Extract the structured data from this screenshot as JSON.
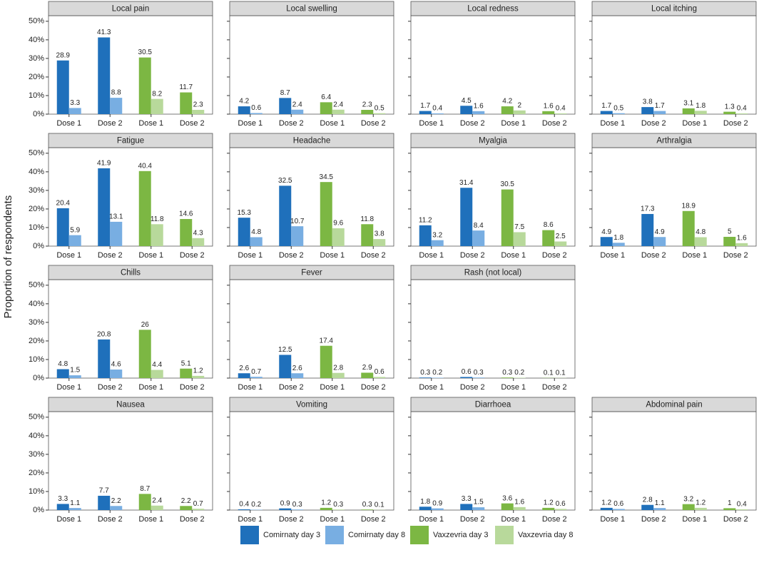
{
  "chart_data": {
    "type": "bar",
    "y_label": "Proportion of respondents",
    "categories": [
      "Dose 1",
      "Dose 2",
      "Dose 1",
      "Dose 2"
    ],
    "ylim": [
      0,
      53
    ],
    "yticks": [
      {
        "value": 0,
        "label": "0%"
      },
      {
        "value": 10,
        "label": "10%"
      },
      {
        "value": 20,
        "label": "20%"
      },
      {
        "value": 30,
        "label": "30%"
      },
      {
        "value": 40,
        "label": "40%"
      },
      {
        "value": 50,
        "label": "50%"
      }
    ],
    "series": [
      {
        "name": "Comirnaty day 3",
        "color": "#1f70bb"
      },
      {
        "name": "Comirnaty day 8",
        "color": "#78aee2"
      },
      {
        "name": "Vaxzevria day 3",
        "color": "#7cb743"
      },
      {
        "name": "Vaxzevria  day 8",
        "color": "#b8d99b"
      }
    ],
    "facets": [
      {
        "title": "Local pain",
        "values": [
          [
            28.9,
            41.3,
            null,
            null
          ],
          [
            3.3,
            8.8,
            null,
            null
          ],
          [
            null,
            null,
            30.5,
            11.7
          ],
          [
            null,
            null,
            8.2,
            2.3
          ]
        ]
      },
      {
        "title": "Local swelling",
        "values": [
          [
            4.2,
            8.7,
            null,
            null
          ],
          [
            0.6,
            2.4,
            null,
            null
          ],
          [
            null,
            null,
            6.4,
            2.3
          ],
          [
            null,
            null,
            2.4,
            0.5
          ]
        ]
      },
      {
        "title": "Local redness",
        "values": [
          [
            1.7,
            4.5,
            null,
            null
          ],
          [
            0.4,
            1.6,
            null,
            null
          ],
          [
            null,
            null,
            4.2,
            1.6
          ],
          [
            null,
            null,
            2,
            0.4
          ]
        ]
      },
      {
        "title": "Local itching",
        "values": [
          [
            1.7,
            3.8,
            null,
            null
          ],
          [
            0.5,
            1.7,
            null,
            null
          ],
          [
            null,
            null,
            3.1,
            1.3
          ],
          [
            null,
            null,
            1.8,
            0.4
          ]
        ]
      },
      {
        "title": "Fatigue",
        "values": [
          [
            20.4,
            41.9,
            null,
            null
          ],
          [
            5.9,
            13.1,
            null,
            null
          ],
          [
            null,
            null,
            40.4,
            14.6
          ],
          [
            null,
            null,
            11.8,
            4.3
          ]
        ]
      },
      {
        "title": "Headache",
        "values": [
          [
            15.3,
            32.5,
            null,
            null
          ],
          [
            4.8,
            10.7,
            null,
            null
          ],
          [
            null,
            null,
            34.5,
            11.8
          ],
          [
            null,
            null,
            9.6,
            3.8
          ]
        ]
      },
      {
        "title": "Myalgia",
        "values": [
          [
            11.2,
            31.4,
            null,
            null
          ],
          [
            3.2,
            8.4,
            null,
            null
          ],
          [
            null,
            null,
            30.5,
            8.6
          ],
          [
            null,
            null,
            7.5,
            2.5
          ]
        ]
      },
      {
        "title": "Arthralgia",
        "values": [
          [
            4.9,
            17.3,
            null,
            null
          ],
          [
            1.8,
            4.9,
            null,
            null
          ],
          [
            null,
            null,
            18.9,
            5
          ],
          [
            null,
            null,
            4.8,
            1.6
          ]
        ]
      },
      {
        "title": "Chills",
        "values": [
          [
            4.8,
            20.8,
            null,
            null
          ],
          [
            1.5,
            4.6,
            null,
            null
          ],
          [
            null,
            null,
            26,
            5.1
          ],
          [
            null,
            null,
            4.4,
            1.2
          ]
        ]
      },
      {
        "title": "Fever",
        "values": [
          [
            2.6,
            12.5,
            null,
            null
          ],
          [
            0.7,
            2.6,
            null,
            null
          ],
          [
            null,
            null,
            17.4,
            2.9
          ],
          [
            null,
            null,
            2.8,
            0.6
          ]
        ]
      },
      {
        "title": "Rash (not local)",
        "values": [
          [
            0.3,
            0.6,
            null,
            null
          ],
          [
            0.2,
            0.3,
            null,
            null
          ],
          [
            null,
            null,
            0.3,
            0.1
          ],
          [
            null,
            null,
            0.2,
            0.1
          ]
        ]
      },
      {
        "title": "Nausea",
        "values": [
          [
            3.3,
            7.7,
            null,
            null
          ],
          [
            1.1,
            2.2,
            null,
            null
          ],
          [
            null,
            null,
            8.7,
            2.2
          ],
          [
            null,
            null,
            2.4,
            0.7
          ]
        ]
      },
      {
        "title": "Vomiting",
        "values": [
          [
            0.4,
            0.9,
            null,
            null
          ],
          [
            0.2,
            0.3,
            null,
            null
          ],
          [
            null,
            null,
            1.2,
            0.3
          ],
          [
            null,
            null,
            0.3,
            0.1
          ]
        ]
      },
      {
        "title": "Diarrhoea",
        "values": [
          [
            1.8,
            3.3,
            null,
            null
          ],
          [
            0.9,
            1.5,
            null,
            null
          ],
          [
            null,
            null,
            3.6,
            1.2
          ],
          [
            null,
            null,
            1.6,
            0.6
          ]
        ]
      },
      {
        "title": "Abdominal pain",
        "values": [
          [
            1.2,
            2.8,
            null,
            null
          ],
          [
            0.6,
            1.1,
            null,
            null
          ],
          [
            null,
            null,
            3.2,
            1
          ],
          [
            null,
            null,
            1.2,
            0.4
          ]
        ]
      }
    ]
  }
}
